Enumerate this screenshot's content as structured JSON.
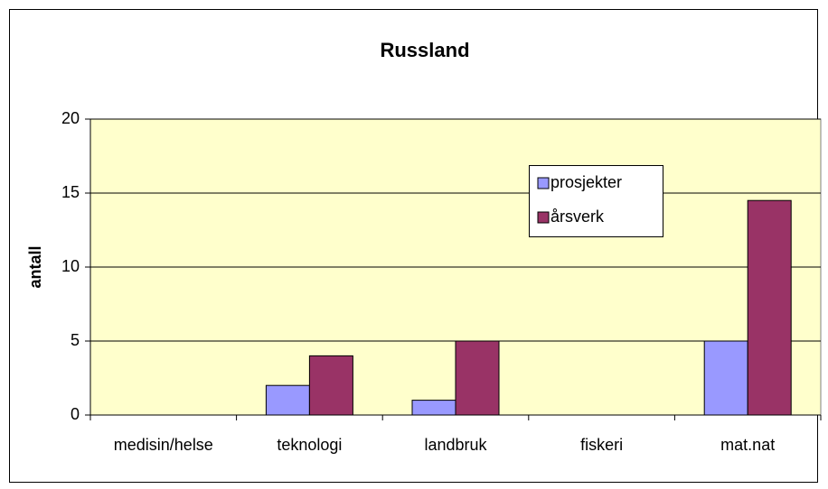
{
  "chart_data": {
    "type": "bar",
    "title": "Russland",
    "y_label": "antall",
    "categories": [
      "medisin/helse",
      "teknologi",
      "landbruk",
      "fiskeri",
      "mat.nat"
    ],
    "series": [
      {
        "name": "prosjekter",
        "color": "#9999ff",
        "values": [
          0,
          2,
          1,
          0,
          5
        ]
      },
      {
        "name": "årsverk",
        "color": "#993366",
        "values": [
          0,
          4,
          5,
          0,
          14.5
        ]
      }
    ],
    "ylim": [
      0,
      20
    ],
    "yticks": [
      0,
      5,
      10,
      15,
      20
    ],
    "grid": true,
    "legend": "upper right",
    "plot_background": "#ffffcc"
  }
}
